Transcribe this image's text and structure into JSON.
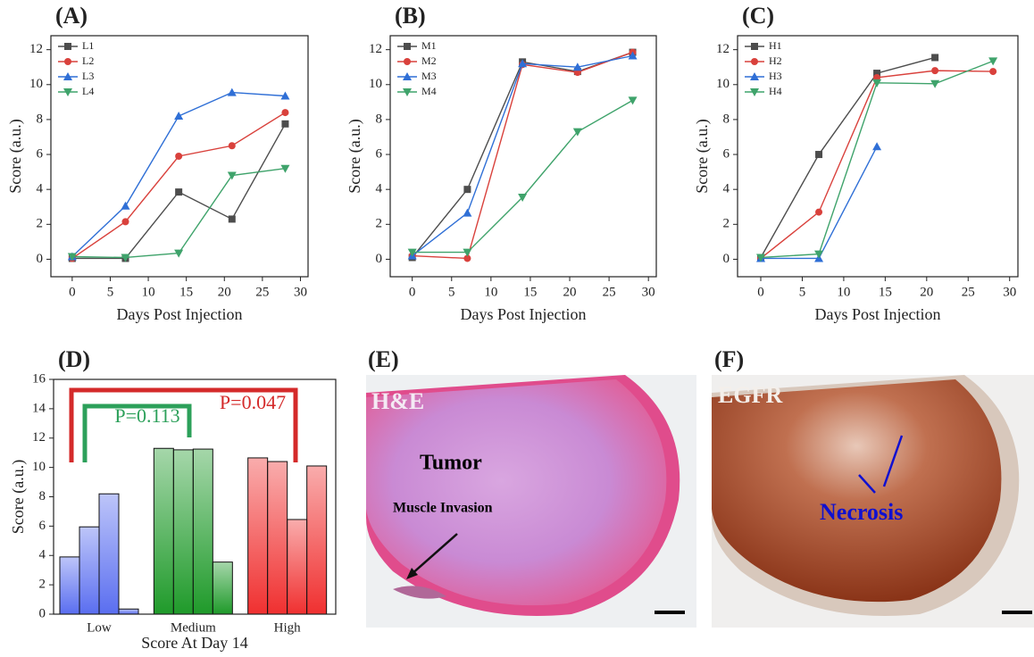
{
  "chart_data": [
    {
      "type": "line",
      "title": "(A)",
      "xlabel": "Days Post Injection",
      "ylabel": "Score (a.u.)",
      "x": [
        0,
        7,
        14,
        21,
        28
      ],
      "xlim": [
        -2.8,
        31
      ],
      "ylim": [
        -1,
        12.8
      ],
      "xticks": [
        0,
        5,
        10,
        15,
        20,
        25,
        30
      ],
      "yticks": [
        0,
        2,
        4,
        6,
        8,
        10,
        12
      ],
      "legend": "upper left",
      "series": [
        {
          "name": "L1",
          "color": "#4d4d4d",
          "marker": "square",
          "values": [
            0.05,
            0.05,
            3.85,
            2.3,
            7.75
          ]
        },
        {
          "name": "L2",
          "color": "#d9413c",
          "marker": "circle",
          "values": [
            0.05,
            2.15,
            5.9,
            6.5,
            8.4
          ]
        },
        {
          "name": "L3",
          "color": "#2f6fd6",
          "marker": "triangle-up",
          "values": [
            0.15,
            3.05,
            8.2,
            9.55,
            9.35
          ]
        },
        {
          "name": "L4",
          "color": "#3fa36b",
          "marker": "triangle-down",
          "values": [
            0.15,
            0.1,
            0.35,
            4.8,
            5.2
          ]
        }
      ]
    },
    {
      "type": "line",
      "title": "(B)",
      "xlabel": "Days Post Injection",
      "ylabel": "Score (a.u.)",
      "x": [
        0,
        7,
        14,
        21,
        28
      ],
      "xlim": [
        -2.8,
        31
      ],
      "ylim": [
        -1,
        12.8
      ],
      "xticks": [
        0,
        5,
        10,
        15,
        20,
        25,
        30
      ],
      "yticks": [
        0,
        2,
        4,
        6,
        8,
        10,
        12
      ],
      "legend": "upper left",
      "series": [
        {
          "name": "M1",
          "color": "#4d4d4d",
          "marker": "square",
          "values": [
            0.1,
            4.0,
            11.3,
            10.75,
            11.85
          ]
        },
        {
          "name": "M2",
          "color": "#d9413c",
          "marker": "circle",
          "values": [
            0.2,
            0.05,
            11.15,
            10.7,
            11.85
          ]
        },
        {
          "name": "M3",
          "color": "#2f6fd6",
          "marker": "triangle-up",
          "values": [
            0.2,
            2.65,
            11.2,
            11.0,
            11.65
          ]
        },
        {
          "name": "M4",
          "color": "#3fa36b",
          "marker": "triangle-down",
          "values": [
            0.4,
            0.4,
            3.55,
            7.3,
            9.1
          ]
        }
      ]
    },
    {
      "type": "line",
      "title": "(C)",
      "xlabel": "Days Post Injection",
      "ylabel": "Score (a.u.)",
      "x": [
        0,
        7,
        14,
        21,
        28
      ],
      "xlim": [
        -2.8,
        31
      ],
      "ylim": [
        -1,
        12.8
      ],
      "xticks": [
        0,
        5,
        10,
        15,
        20,
        25,
        30
      ],
      "yticks": [
        0,
        2,
        4,
        6,
        8,
        10,
        12
      ],
      "legend": "upper left",
      "series": [
        {
          "name": "H1",
          "color": "#4d4d4d",
          "marker": "square",
          "values": [
            0.1,
            6.0,
            10.65,
            11.55,
            null
          ]
        },
        {
          "name": "H2",
          "color": "#d9413c",
          "marker": "circle",
          "values": [
            0.05,
            2.7,
            10.4,
            10.8,
            10.75
          ]
        },
        {
          "name": "H3",
          "color": "#2f6fd6",
          "marker": "triangle-up",
          "values": [
            0.05,
            0.05,
            6.45,
            null,
            null
          ]
        },
        {
          "name": "H4",
          "color": "#3fa36b",
          "marker": "triangle-down",
          "values": [
            0.1,
            0.3,
            10.1,
            10.05,
            11.35
          ]
        }
      ]
    },
    {
      "type": "grouped-bar",
      "title": "(D)",
      "xlabel": "Score At Day 14",
      "ylabel": "Score (a.u.)",
      "ylim": [
        0,
        16
      ],
      "yticks": [
        0,
        2,
        4,
        6,
        8,
        10,
        12,
        14,
        16
      ],
      "groups": [
        {
          "category": "Low",
          "color": "#5a6ef0",
          "values": [
            3.9,
            5.95,
            8.2,
            0.35
          ]
        },
        {
          "category": "Medium",
          "color": "#1f9a2a",
          "values": [
            11.3,
            11.2,
            11.25,
            3.55
          ]
        },
        {
          "category": "High",
          "color": "#f03030",
          "values": [
            10.65,
            10.4,
            6.45,
            10.1
          ]
        }
      ],
      "annotations": [
        {
          "text": "P=0.113",
          "color": "#2ca05a"
        },
        {
          "text": "P=0.047",
          "color": "#d42a2a"
        }
      ]
    }
  ],
  "images": [
    {
      "label": "(E)",
      "stain": "H&E",
      "annotations": [
        "Tumor",
        "Muscle Invasion"
      ]
    },
    {
      "label": "(F)",
      "stain": "EGFR",
      "annotations": [
        "Necrosis"
      ]
    }
  ]
}
